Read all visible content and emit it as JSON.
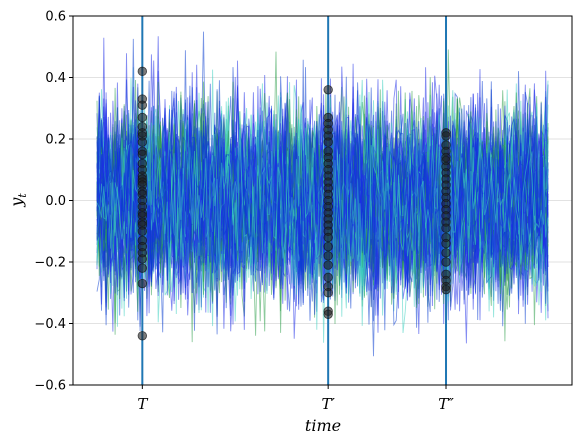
{
  "chart_data": {
    "type": "line",
    "title": "",
    "xlabel": "time",
    "ylabel_main": "y",
    "ylabel_sub": "t",
    "ylim": [
      -0.6,
      0.6
    ],
    "yticks": [
      -0.6,
      -0.4,
      -0.2,
      0.0,
      0.2,
      0.4,
      0.6
    ],
    "ytick_labels": [
      "−0.6",
      "−0.4",
      "−0.2",
      "0.0",
      "0.2",
      "0.4",
      "0.6"
    ],
    "grid": "horizontal",
    "legend": "none",
    "time_steps": 200,
    "series_colors": [
      "#3cd0c0",
      "#2e9e4a",
      "#1f2ee8",
      "#0a3ed0"
    ],
    "paths_per_color": [
      18,
      14,
      28,
      20
    ],
    "noise_std": 0.14,
    "vertical_markers": [
      {
        "label": "T",
        "base": "T",
        "prime": "",
        "t": 20,
        "color": "#1f77b4"
      },
      {
        "label": "T′",
        "base": "T",
        "prime": "′",
        "t": 102,
        "color": "#1f77b4"
      },
      {
        "label": "T″",
        "base": "T",
        "prime": "″",
        "t": 154,
        "color": "#1f77b4"
      }
    ],
    "cross_section_points": [
      {
        "marker": "T",
        "values": [
          0.42,
          0.33,
          0.31,
          0.27,
          0.24,
          0.22,
          0.21,
          0.19,
          0.16,
          0.15,
          0.12,
          0.1,
          0.08,
          0.07,
          0.06,
          0.05,
          0.03,
          0.02,
          0.0,
          -0.02,
          -0.04,
          -0.05,
          -0.07,
          -0.08,
          -0.1,
          -0.13,
          -0.15,
          -0.17,
          -0.19,
          -0.22,
          -0.27,
          -0.44
        ]
      },
      {
        "marker": "T′",
        "values": [
          0.36,
          0.27,
          0.25,
          0.23,
          0.21,
          0.19,
          0.16,
          0.14,
          0.12,
          0.1,
          0.08,
          0.06,
          0.04,
          0.02,
          0.0,
          -0.02,
          -0.04,
          -0.06,
          -0.08,
          -0.1,
          -0.12,
          -0.15,
          -0.18,
          -0.21,
          -0.25,
          -0.28,
          -0.3,
          -0.36,
          -0.37
        ]
      },
      {
        "marker": "T″",
        "values": [
          0.22,
          0.21,
          0.18,
          0.16,
          0.14,
          0.13,
          0.11,
          0.09,
          0.07,
          0.05,
          0.03,
          0.01,
          -0.01,
          -0.03,
          -0.05,
          -0.07,
          -0.09,
          -0.12,
          -0.14,
          -0.17,
          -0.2,
          -0.24,
          -0.26,
          -0.28,
          -0.29
        ]
      }
    ]
  }
}
